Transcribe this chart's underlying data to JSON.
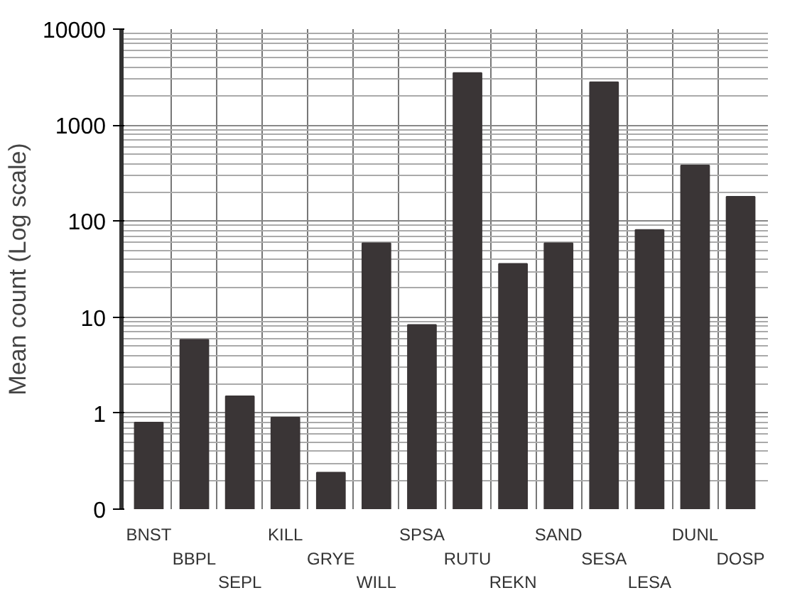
{
  "chart_data": {
    "type": "bar",
    "ylabel": "Mean count (Log scale)",
    "categories": [
      "BNST",
      "BBPL",
      "SEPL",
      "KILL",
      "GRYE",
      "WILL",
      "SPSA",
      "RUTU",
      "REKN",
      "SAND",
      "SESA",
      "LESA",
      "DUNL",
      "DOSP"
    ],
    "values": [
      0.8,
      5.8,
      1.5,
      0.9,
      0.24,
      59,
      8.3,
      3500,
      36,
      59,
      2800,
      81,
      380,
      180
    ],
    "color": "#3a3536",
    "log": true,
    "grid": true,
    "ylim": [
      0.1,
      10000
    ],
    "yticks": [
      {
        "value": 0.1,
        "label": "0"
      },
      1,
      10,
      100,
      1000,
      10000
    ]
  }
}
